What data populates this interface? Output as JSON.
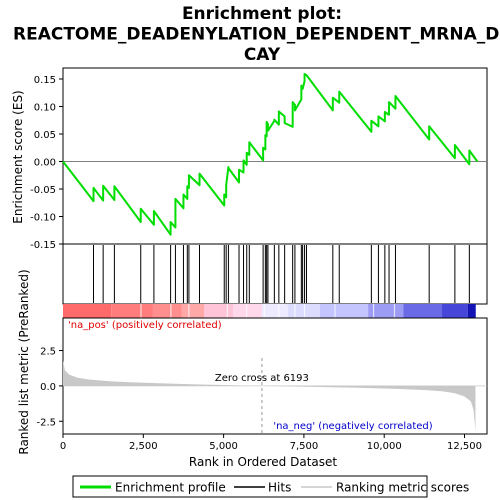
{
  "chart_data": {
    "type": "line",
    "title": "Enrichment plot:\nREACTOME_DEADENYLATION_DEPENDENT_MRNA_DE\nCAY",
    "title_lines": [
      "Enrichment plot:",
      "REACTOME_DEADENYLATION_DEPENDENT_MRNA_DE",
      "CAY"
    ],
    "es_panel": {
      "ylabel": "Enrichment score (ES)",
      "ylim": [
        -0.15,
        0.17
      ],
      "yticks": [
        -0.15,
        -0.1,
        -0.05,
        0.0,
        0.05,
        0.1,
        0.15
      ],
      "ytick_labels": [
        "-0.15",
        "-0.10",
        "-0.05",
        "0.00",
        "0.05",
        "0.10",
        "0.15"
      ],
      "line_color": "#00dd00",
      "grid": false
    },
    "xaxis": {
      "label": "Rank in Ordered Dataset",
      "xlim": [
        0,
        13200
      ],
      "xticks": [
        0,
        2500,
        5000,
        7500,
        10000,
        12500
      ],
      "xtick_labels": [
        "0",
        "2,500",
        "5,000",
        "7,500",
        "10,000",
        "12,500"
      ]
    },
    "hits": [
      950,
      1250,
      1600,
      2420,
      2830,
      3350,
      3500,
      3750,
      3870,
      3920,
      4250,
      5020,
      5080,
      5150,
      5480,
      5620,
      5720,
      5800,
      6230,
      6300,
      6340,
      6380,
      6580,
      6720,
      6900,
      7150,
      7220,
      7420,
      7460,
      7520,
      7580,
      8400,
      8600,
      9600,
      9820,
      10020,
      10150,
      10350,
      11400,
      12200,
      12650
    ],
    "enrichment_profile": {
      "x": [
        0,
        950,
        950,
        1250,
        1250,
        1600,
        1600,
        2420,
        2420,
        2830,
        2830,
        3350,
        3350,
        3500,
        3500,
        3750,
        3750,
        3870,
        3870,
        3920,
        3920,
        4250,
        4250,
        5020,
        5020,
        5080,
        5080,
        5150,
        5150,
        5480,
        5480,
        5620,
        5620,
        5720,
        5720,
        5800,
        5800,
        6230,
        6230,
        6300,
        6300,
        6340,
        6340,
        6380,
        6380,
        6580,
        6580,
        6720,
        6720,
        6900,
        6900,
        7150,
        7150,
        7220,
        7220,
        7420,
        7420,
        7460,
        7460,
        7520,
        7520,
        7580,
        7580,
        8400,
        8400,
        8600,
        8600,
        9600,
        9600,
        9820,
        9820,
        10020,
        10020,
        10150,
        10150,
        10350,
        10350,
        11400,
        11400,
        12200,
        12200,
        12650,
        12650,
        12900
      ],
      "y": [
        0.0,
        -0.072,
        -0.048,
        -0.071,
        -0.044,
        -0.07,
        -0.045,
        -0.11,
        -0.086,
        -0.115,
        -0.09,
        -0.133,
        -0.11,
        -0.12,
        -0.068,
        -0.085,
        -0.06,
        -0.068,
        -0.045,
        -0.048,
        -0.025,
        -0.043,
        -0.022,
        -0.08,
        -0.06,
        -0.065,
        -0.043,
        -0.01,
        -0.012,
        -0.038,
        -0.015,
        -0.02,
        0.002,
        -0.006,
        0.016,
        0.012,
        0.035,
        0.002,
        0.025,
        0.022,
        0.048,
        0.046,
        0.072,
        0.068,
        0.056,
        0.074,
        0.076,
        0.067,
        0.091,
        0.082,
        0.07,
        0.063,
        0.108,
        0.103,
        0.093,
        0.113,
        0.138,
        0.134,
        0.132,
        0.146,
        0.159,
        0.157,
        0.157,
        0.093,
        0.116,
        0.107,
        0.127,
        0.054,
        0.074,
        0.064,
        0.082,
        0.073,
        0.09,
        0.085,
        0.108,
        0.096,
        0.119,
        0.04,
        0.064,
        0.006,
        0.03,
        -0.005,
        0.02,
        0.0
      ]
    },
    "rank_panel": {
      "ylabel": "Ranked list metric (PreRanked)",
      "ylim": [
        -3.4,
        4.8
      ],
      "yticks": [
        -2.5,
        0.0,
        2.5
      ],
      "ytick_labels": [
        "-2.5",
        "0.0",
        "2.5"
      ],
      "metric_curve": {
        "x": [
          0,
          60,
          200,
          450,
          800,
          1500,
          2500,
          4000,
          6193,
          8000,
          9500,
          10500,
          11300,
          11800,
          12200,
          12500,
          12700,
          12780,
          12810,
          12840
        ],
        "y": [
          1.8,
          1.1,
          0.8,
          0.58,
          0.45,
          0.32,
          0.22,
          0.12,
          0.0,
          -0.08,
          -0.15,
          -0.22,
          -0.3,
          -0.38,
          -0.52,
          -0.75,
          -1.1,
          -1.7,
          -2.4,
          -3.2
        ]
      },
      "fill_color": "#c8c8c8",
      "zero_cross_rank": 6193,
      "zero_cross_label": "Zero cross at 6193",
      "pos_label": "'na_pos' (positively correlated)",
      "neg_label": "'na_neg' (negatively correlated)",
      "pos_label_color": "#e00000",
      "neg_label_color": "#0000cc"
    },
    "color_bar": {
      "segments": [
        {
          "from": 0,
          "to": 1500,
          "color": "#ff6b6b"
        },
        {
          "from": 1500,
          "to": 2800,
          "color": "#ff7d7d"
        },
        {
          "from": 2800,
          "to": 3700,
          "color": "#ff8f8f"
        },
        {
          "from": 3700,
          "to": 4400,
          "color": "#ffa8a8"
        },
        {
          "from": 4400,
          "to": 5300,
          "color": "#ffc4d8"
        },
        {
          "from": 5300,
          "to": 6193,
          "color": "#ffd8ec"
        },
        {
          "from": 6193,
          "to": 7000,
          "color": "#eeeaff"
        },
        {
          "from": 7000,
          "to": 8000,
          "color": "#dcdcff"
        },
        {
          "from": 8000,
          "to": 9500,
          "color": "#c4c4ff"
        },
        {
          "from": 9500,
          "to": 10600,
          "color": "#9c9cf4"
        },
        {
          "from": 10600,
          "to": 11800,
          "color": "#6a6ae6"
        },
        {
          "from": 11800,
          "to": 12600,
          "color": "#4646d8"
        },
        {
          "from": 12600,
          "to": 12850,
          "color": "#1414b4"
        }
      ],
      "white_bands": [
        2410,
        3340,
        3900,
        5100,
        5700,
        6250,
        6700,
        7200,
        7500,
        8450,
        9650,
        10300
      ]
    },
    "legend": {
      "entries": [
        {
          "label": "Enrichment profile",
          "color": "#00dd00",
          "kind": "thick-line"
        },
        {
          "label": "Hits",
          "color": "#000000",
          "kind": "line"
        },
        {
          "label": "Ranking metric scores",
          "color": "#c8c8c8",
          "kind": "line"
        }
      ],
      "placement": "bottom"
    }
  }
}
